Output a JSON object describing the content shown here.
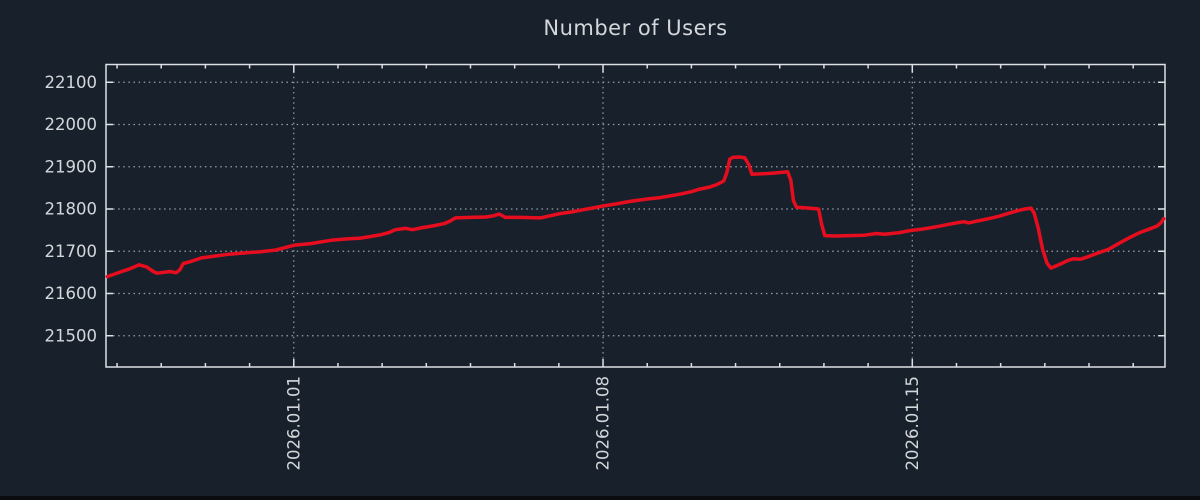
{
  "chart_data": {
    "type": "line",
    "title": "Number of Users",
    "legend": "none",
    "grid": "dotted",
    "x_axis": {
      "kind": "time",
      "unit_note": "x values are fractional days relative to 2026-01-01",
      "range": [
        -4.25,
        19.72
      ],
      "major_ticks": [
        {
          "t": 0,
          "label": "2026.01.01"
        },
        {
          "t": 7,
          "label": "2026.01.08"
        },
        {
          "t": 14,
          "label": "2026.01.15"
        }
      ],
      "minor_tick_step_days": 1,
      "tick_label_rotation_deg": -90
    },
    "y_axis": {
      "range": [
        21426,
        22142
      ],
      "tick_step": 100,
      "ticks": [
        21500,
        21600,
        21700,
        21800,
        21900,
        22000,
        22100
      ]
    },
    "series": [
      {
        "name": "Number of Users",
        "color": "#e60d1e",
        "line_width": 3.5,
        "points": [
          [
            -4.22,
            21640
          ],
          [
            -3.95,
            21650
          ],
          [
            -3.7,
            21659
          ],
          [
            -3.5,
            21668
          ],
          [
            -3.33,
            21663
          ],
          [
            -3.18,
            21652
          ],
          [
            -3.1,
            21648
          ],
          [
            -2.95,
            21650
          ],
          [
            -2.8,
            21652
          ],
          [
            -2.66,
            21649
          ],
          [
            -2.58,
            21656
          ],
          [
            -2.5,
            21671
          ],
          [
            -2.35,
            21675
          ],
          [
            -2.1,
            21684
          ],
          [
            -1.75,
            21689
          ],
          [
            -1.47,
            21693
          ],
          [
            -1.1,
            21696
          ],
          [
            -0.75,
            21699
          ],
          [
            -0.4,
            21703
          ],
          [
            0.0,
            21714
          ],
          [
            0.38,
            21718
          ],
          [
            0.84,
            21726
          ],
          [
            1.17,
            21729
          ],
          [
            1.51,
            21731
          ],
          [
            1.74,
            21735
          ],
          [
            1.96,
            21739
          ],
          [
            2.15,
            21744
          ],
          [
            2.3,
            21751
          ],
          [
            2.53,
            21754
          ],
          [
            2.69,
            21751
          ],
          [
            2.87,
            21755
          ],
          [
            3.2,
            21761
          ],
          [
            3.42,
            21766
          ],
          [
            3.55,
            21772
          ],
          [
            3.66,
            21779
          ],
          [
            4.0,
            21780
          ],
          [
            4.35,
            21781
          ],
          [
            4.52,
            21784
          ],
          [
            4.65,
            21788
          ],
          [
            4.79,
            21780
          ],
          [
            5.13,
            21780
          ],
          [
            5.58,
            21779
          ],
          [
            5.8,
            21784
          ],
          [
            6.03,
            21789
          ],
          [
            6.3,
            21793
          ],
          [
            6.48,
            21797
          ],
          [
            6.75,
            21802
          ],
          [
            7.0,
            21807
          ],
          [
            7.3,
            21812
          ],
          [
            7.61,
            21818
          ],
          [
            7.95,
            21823
          ],
          [
            8.29,
            21827
          ],
          [
            8.74,
            21835
          ],
          [
            9.0,
            21841
          ],
          [
            9.19,
            21847
          ],
          [
            9.42,
            21852
          ],
          [
            9.58,
            21858
          ],
          [
            9.73,
            21866
          ],
          [
            9.8,
            21885
          ],
          [
            9.87,
            21918
          ],
          [
            9.94,
            21922
          ],
          [
            10.09,
            21923
          ],
          [
            10.21,
            21921
          ],
          [
            10.3,
            21905
          ],
          [
            10.37,
            21882
          ],
          [
            10.55,
            21883
          ],
          [
            10.75,
            21884
          ],
          [
            10.95,
            21886
          ],
          [
            11.18,
            21888
          ],
          [
            11.25,
            21868
          ],
          [
            11.31,
            21820
          ],
          [
            11.38,
            21804
          ],
          [
            11.56,
            21803
          ],
          [
            11.79,
            21801
          ],
          [
            11.88,
            21800
          ],
          [
            11.95,
            21763
          ],
          [
            12.02,
            21737
          ],
          [
            12.24,
            21736
          ],
          [
            12.58,
            21737
          ],
          [
            12.92,
            21738
          ],
          [
            13.19,
            21742
          ],
          [
            13.37,
            21740
          ],
          [
            13.71,
            21744
          ],
          [
            13.96,
            21749
          ],
          [
            14.2,
            21752
          ],
          [
            14.38,
            21755
          ],
          [
            14.6,
            21759
          ],
          [
            14.84,
            21764
          ],
          [
            15.05,
            21768
          ],
          [
            15.17,
            21770
          ],
          [
            15.28,
            21767
          ],
          [
            15.45,
            21771
          ],
          [
            15.63,
            21775
          ],
          [
            15.8,
            21779
          ],
          [
            15.97,
            21783
          ],
          [
            16.19,
            21790
          ],
          [
            16.42,
            21797
          ],
          [
            16.55,
            21800
          ],
          [
            16.69,
            21802
          ],
          [
            16.76,
            21790
          ],
          [
            16.85,
            21755
          ],
          [
            16.95,
            21705
          ],
          [
            17.05,
            21672
          ],
          [
            17.14,
            21660
          ],
          [
            17.25,
            21665
          ],
          [
            17.4,
            21672
          ],
          [
            17.52,
            21678
          ],
          [
            17.65,
            21682
          ],
          [
            17.8,
            21681
          ],
          [
            17.95,
            21686
          ],
          [
            18.18,
            21695
          ],
          [
            18.45,
            21705
          ],
          [
            18.7,
            21720
          ],
          [
            18.93,
            21733
          ],
          [
            19.15,
            21744
          ],
          [
            19.38,
            21753
          ],
          [
            19.55,
            21760
          ],
          [
            19.64,
            21769
          ],
          [
            19.69,
            21777
          ]
        ]
      }
    ],
    "colors": {
      "background": "#18202c",
      "frame": "#dde1e5",
      "grid": "#98a0aa",
      "text": "#d4d7da",
      "line": "#e60d1e",
      "bottom_bar": "#0a0c10"
    }
  }
}
